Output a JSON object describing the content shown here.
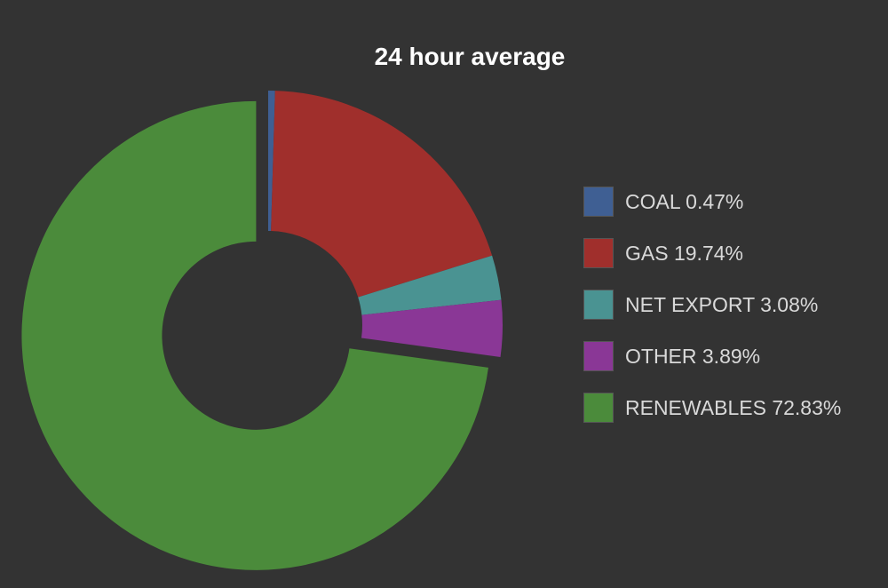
{
  "chart_data": {
    "type": "pie",
    "title": "24 hour average",
    "legend_position": "right",
    "slices": [
      {
        "label": "COAL",
        "value": 0.47,
        "value_text": "0.47%",
        "color": "#3f5f93",
        "exploded": false
      },
      {
        "label": "GAS",
        "value": 19.74,
        "value_text": "19.74%",
        "color": "#a02f2c",
        "exploded": false
      },
      {
        "label": "NET EXPORT",
        "value": 3.08,
        "value_text": "3.08%",
        "color": "#4a9392",
        "exploded": false
      },
      {
        "label": "OTHER",
        "value": 3.89,
        "value_text": "3.89%",
        "color": "#8a3796",
        "exploded": false
      },
      {
        "label": "RENEWABLES",
        "value": 72.83,
        "value_text": "72.83%",
        "color": "#4b8b3b",
        "exploded": true
      }
    ]
  }
}
